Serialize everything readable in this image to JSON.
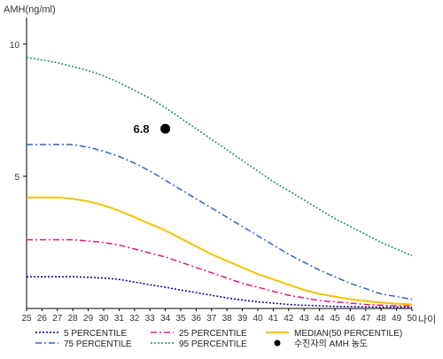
{
  "chart_data": {
    "type": "line",
    "ylabel": "AMH(ng/ml)",
    "xlabel": "나이",
    "xlim": [
      25,
      50
    ],
    "ylim": [
      0,
      11
    ],
    "y_ticks": [
      5,
      10
    ],
    "x": [
      25,
      26,
      27,
      28,
      29,
      30,
      31,
      32,
      33,
      34,
      35,
      36,
      37,
      38,
      39,
      40,
      41,
      42,
      43,
      44,
      45,
      46,
      47,
      48,
      49,
      50
    ],
    "series": [
      {
        "name": "5 PERCENTILE",
        "color": "#00008b",
        "dash": "dotted",
        "values": [
          1.2,
          1.2,
          1.2,
          1.2,
          1.18,
          1.15,
          1.1,
          1.0,
          0.9,
          0.8,
          0.7,
          0.6,
          0.5,
          0.4,
          0.32,
          0.25,
          0.2,
          0.15,
          0.12,
          0.1,
          0.08,
          0.07,
          0.06,
          0.05,
          0.05,
          0.05
        ]
      },
      {
        "name": "25 PERCENTILE",
        "color": "#e0187e",
        "dash": "dashdot",
        "values": [
          2.6,
          2.6,
          2.6,
          2.6,
          2.55,
          2.5,
          2.4,
          2.25,
          2.1,
          1.95,
          1.75,
          1.55,
          1.35,
          1.15,
          0.95,
          0.8,
          0.65,
          0.5,
          0.4,
          0.3,
          0.25,
          0.2,
          0.15,
          0.12,
          0.1,
          0.1
        ]
      },
      {
        "name": "MEDIAN(50 PERCENTILE)",
        "color": "#f2c200",
        "dash": "solid",
        "values": [
          4.2,
          4.2,
          4.2,
          4.15,
          4.05,
          3.9,
          3.7,
          3.45,
          3.2,
          2.95,
          2.65,
          2.35,
          2.05,
          1.8,
          1.55,
          1.3,
          1.1,
          0.9,
          0.7,
          0.55,
          0.45,
          0.35,
          0.28,
          0.22,
          0.18,
          0.15
        ]
      },
      {
        "name": "75 PERCENTILE",
        "color": "#3a5fc8",
        "dash": "dashdot",
        "values": [
          6.2,
          6.2,
          6.2,
          6.2,
          6.1,
          5.95,
          5.75,
          5.5,
          5.2,
          4.85,
          4.5,
          4.15,
          3.8,
          3.45,
          3.1,
          2.75,
          2.4,
          2.05,
          1.75,
          1.45,
          1.2,
          0.95,
          0.75,
          0.55,
          0.45,
          0.35
        ]
      },
      {
        "name": "95 PERCENTILE",
        "color": "#1f8a5c",
        "dash": "dotted",
        "values": [
          9.5,
          9.4,
          9.3,
          9.15,
          9.0,
          8.8,
          8.55,
          8.25,
          7.95,
          7.6,
          7.2,
          6.8,
          6.4,
          6.0,
          5.6,
          5.2,
          4.8,
          4.45,
          4.1,
          3.75,
          3.4,
          3.1,
          2.8,
          2.5,
          2.25,
          2.0
        ]
      }
    ],
    "points": [
      {
        "name": "수진자의 AMH 농도",
        "x": 34,
        "y": 6.8,
        "label": "6.8",
        "color": "#000000"
      }
    ],
    "legend_position": "bottom",
    "legend": [
      {
        "label": "5 PERCENTILE",
        "color": "#00008b",
        "dash": "dotted"
      },
      {
        "label": "25 PERCENTILE",
        "color": "#e0187e",
        "dash": "dashdot"
      },
      {
        "label": "MEDIAN(50 PERCENTILE)",
        "color": "#f2c200",
        "dash": "solid"
      },
      {
        "label": "75 PERCENTILE",
        "color": "#3a5fc8",
        "dash": "dashdot"
      },
      {
        "label": "95 PERCENTILE",
        "color": "#1f8a5c",
        "dash": "dotted"
      },
      {
        "label": "수진자의 AMH 농도",
        "color": "#000000",
        "marker": "dot"
      }
    ],
    "grid": false
  }
}
